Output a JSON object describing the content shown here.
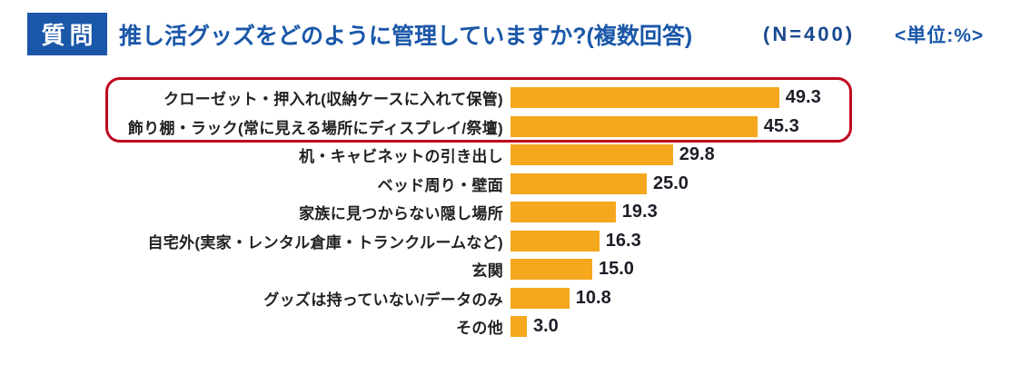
{
  "header": {
    "question_label": "質問",
    "title": "推し活グッズをどのように管理していますか?(複数回答)",
    "sample_size": "(N=400)",
    "unit_note": "<単位:%>"
  },
  "colors": {
    "header_blue": "#1A57A8",
    "bar_orange": "#F5A71E",
    "highlight_red": "#C00A1E",
    "value_text": "#1D1D28"
  },
  "chart_data": {
    "type": "bar",
    "orientation": "horizontal",
    "title": "推し活グッズをどのように管理していますか?(複数回答)",
    "sample_size_label": "(N=400)",
    "unit": "%",
    "xlim": [
      0,
      55
    ],
    "grid": false,
    "legend": false,
    "categories": [
      "クローゼット・押入れ(収納ケースに入れて保管)",
      "飾り棚・ラック(常に見える場所にディスプレイ/祭壇)",
      "机・キャビネットの引き出し",
      "ベッド周り・壁面",
      "家族に見つからない隠し場所",
      "自宅外(実家・レンタル倉庫・トランクルームなど)",
      "玄関",
      "グッズは持っていない/データのみ",
      "その他"
    ],
    "values": [
      49.3,
      45.3,
      29.8,
      25.0,
      19.3,
      16.3,
      15.0,
      10.8,
      3.0
    ],
    "value_labels": [
      "49.3",
      "45.3",
      "29.8",
      "25.0",
      "19.3",
      "16.3",
      "15.0",
      "10.8",
      "3.0"
    ],
    "highlighted_rows": [
      0,
      1
    ]
  }
}
